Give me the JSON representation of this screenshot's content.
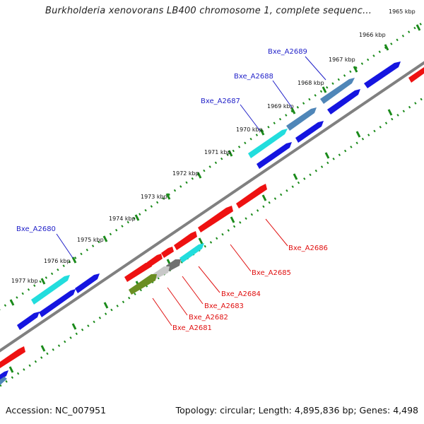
{
  "title": "Burkholderia xenovorans LB400 chromosome 1, complete sequenc...",
  "footer": {
    "accession": "Accession: NC_007951",
    "info": "Topology: circular; Length: 4,895,836 bp; Genes: 4,498"
  },
  "ticks": [
    "1965 kbp",
    "1966 kbp",
    "1967 kbp",
    "1968 kbp",
    "1969 kbp",
    "1970 kbp",
    "1971 kbp",
    "1972 kbp",
    "1973 kbp",
    "1974 kbp",
    "1975 kbp",
    "1976 kbp",
    "1977 kbp"
  ],
  "gene_labels_forward": [
    "Bxe_A2689",
    "Bxe_A2688",
    "Bxe_A2687",
    "Bxe_A2680"
  ],
  "gene_labels_reverse": [
    "Bxe_A2686",
    "Bxe_A2685",
    "Bxe_A2684",
    "Bxe_A2683",
    "Bxe_A2682",
    "Bxe_A2681"
  ],
  "colors": {
    "forward_label": "#1f1fc8",
    "reverse_label": "#e01010",
    "blue": "#1515e0",
    "red": "#ee1111",
    "cyan": "#22dddd",
    "steel": "#4f86b8",
    "olive": "#6b8e23",
    "gray": "#707070",
    "lightgray": "#c8c8c8",
    "backbone": "#808080",
    "tick_dot": "#1a8a1a"
  }
}
